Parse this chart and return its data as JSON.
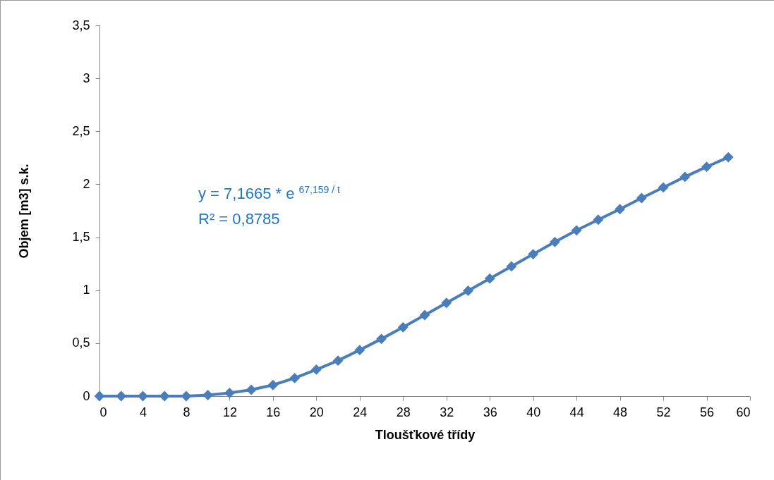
{
  "chart_data": {
    "type": "line",
    "xlabel": "Tloušťkové třídy",
    "ylabel": "Objem [m3] s.k.",
    "x": [
      0,
      2,
      4,
      6,
      8,
      10,
      12,
      14,
      16,
      18,
      20,
      22,
      24,
      26,
      28,
      30,
      32,
      34,
      36,
      38,
      40,
      42,
      44,
      46,
      48,
      50,
      52,
      54,
      56,
      58
    ],
    "series": [
      {
        "color": "#4a7ebb",
        "values": [
          0,
          0,
          0,
          0,
          0,
          0.01,
          0.03,
          0.06,
          0.105,
          0.17,
          0.25,
          0.335,
          0.435,
          0.54,
          0.65,
          0.765,
          0.88,
          0.995,
          1.11,
          1.225,
          1.34,
          1.455,
          1.565,
          1.665,
          1.765,
          1.87,
          1.97,
          2.07,
          2.165,
          2.255
        ]
      }
    ],
    "xlim": [
      0,
      60
    ],
    "xticks": [
      0,
      4,
      8,
      12,
      16,
      20,
      24,
      28,
      32,
      36,
      40,
      44,
      48,
      52,
      56,
      60
    ],
    "ylim": [
      0,
      3.5
    ],
    "yticks": [
      0,
      {
        "value": 0.5,
        "label": "0,5"
      },
      1,
      {
        "value": 1.5,
        "label": "1,5"
      },
      2,
      {
        "value": 2.5,
        "label": "2,5"
      },
      3,
      {
        "value": 3.5,
        "label": "3,5"
      }
    ],
    "annotations": [
      "y = 7,1665 * e $^{67,159 / t}$",
      "R² = 0,8785"
    ],
    "grid": false,
    "marker": "diamond",
    "line_style": "solid"
  }
}
